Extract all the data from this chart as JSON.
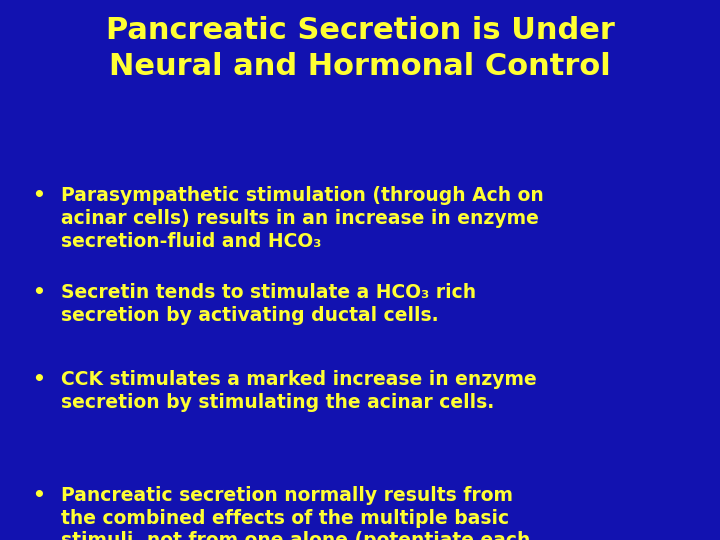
{
  "title_line1": "Pancreatic Secretion is Under",
  "title_line2": "Neural and Hormonal Control",
  "background_color": "#1212b0",
  "title_color": "#ffff33",
  "bullet_color": "#ffff33",
  "bullets": [
    "Parasympathetic stimulation (through Ach on\nacinar cells) results in an increase in enzyme\nsecretion-fluid and HCO₃",
    "Secretin tends to stimulate a HCO₃ rich\nsecretion by activating ductal cells.",
    "CCK stimulates a marked increase in enzyme\nsecretion by stimulating the acinar cells.",
    "Pancreatic secretion normally results from\nthe combined effects of the multiple basic\nstimuli, not from one alone (potentiate each\nother)."
  ],
  "title_fontsize": 22,
  "bullet_fontsize": 13.5,
  "figsize": [
    7.2,
    5.4
  ],
  "dpi": 100
}
